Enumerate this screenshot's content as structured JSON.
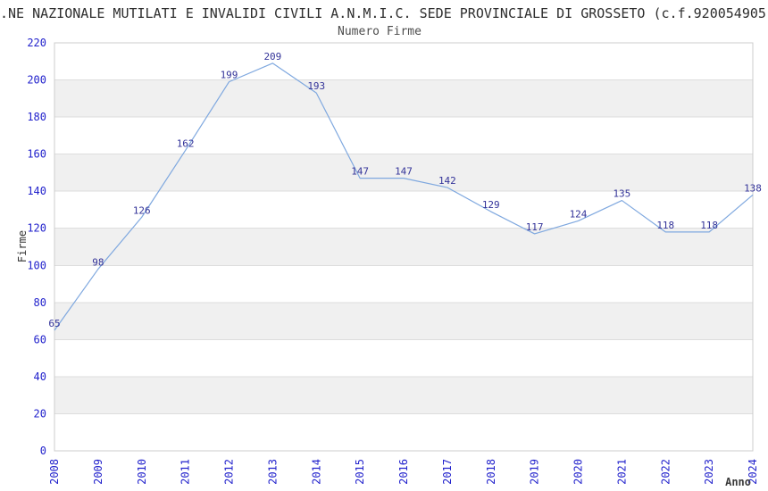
{
  "header": {
    "title": ".NE NAZIONALE MUTILATI E INVALIDI CIVILI A.N.M.I.C. SEDE PROVINCIALE DI GROSSETO (c.f.920054905",
    "subtitle": "Numero Firme"
  },
  "chart_data": {
    "type": "line",
    "title": "Numero Firme",
    "categories": [
      "2008",
      "2009",
      "2010",
      "2011",
      "2012",
      "2013",
      "2014",
      "2015",
      "2016",
      "2017",
      "2018",
      "2019",
      "2020",
      "2021",
      "2022",
      "2023",
      "2024"
    ],
    "values": [
      65,
      98,
      126,
      162,
      199,
      209,
      193,
      147,
      147,
      142,
      129,
      117,
      124,
      135,
      118,
      118,
      138
    ],
    "xlabel": "Anno",
    "ylabel": "Firme",
    "ylim": [
      0,
      220
    ],
    "ytick_step": 20,
    "grid": "horizontal-bands-alternating",
    "legend": "none",
    "point_labels_visible": true,
    "colors": {
      "line": "#7FA8DF",
      "point_label": "#333399",
      "tick_label": "#2222CC",
      "band": "#F0F0F0",
      "gridline": "#DDDDDD",
      "border": "#CCCCCC",
      "title": "#2E2E2E",
      "subtitle": "#4D4D4D",
      "axis_title": "#333333"
    }
  }
}
